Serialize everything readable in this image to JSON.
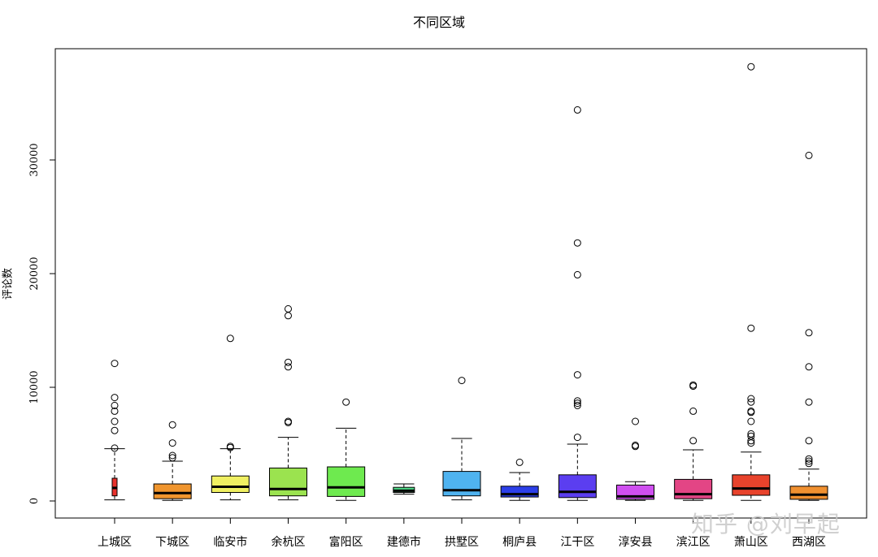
{
  "chart_data": {
    "type": "box",
    "title": "不同区域",
    "xlabel": "",
    "ylabel": "评论数",
    "ylim": [
      -1500,
      40000
    ],
    "yticks": [
      0,
      10000,
      20000,
      30000
    ],
    "grid": false,
    "legend": "none",
    "categories": [
      "上城区",
      "下城区",
      "临安市",
      "余杭区",
      "富阳区",
      "建德市",
      "拱墅区",
      "桐庐县",
      "江干区",
      "淳安县",
      "滨江区",
      "萧山区",
      "西湖区"
    ],
    "boxes": [
      {
        "name": "上城区",
        "color": "#e8312c",
        "whisker_low": 100,
        "q1": 450,
        "median": 1150,
        "q3": 2000,
        "whisker_high": 4600,
        "outliers": [
          4650,
          6200,
          7000,
          7900,
          8400,
          9100,
          12100
        ]
      },
      {
        "name": "下城区",
        "color": "#f0952e",
        "whisker_low": 50,
        "q1": 200,
        "median": 700,
        "q3": 1500,
        "whisker_high": 3500,
        "outliers": [
          3800,
          4000,
          5100,
          6700
        ]
      },
      {
        "name": "临安市",
        "color": "#f0f062",
        "whisker_low": 100,
        "q1": 750,
        "median": 1250,
        "q3": 2200,
        "whisker_high": 4600,
        "outliers": [
          4700,
          4800,
          14300
        ]
      },
      {
        "name": "余杭区",
        "color": "#9be34f",
        "whisker_low": 100,
        "q1": 450,
        "median": 1050,
        "q3": 2900,
        "whisker_high": 5600,
        "outliers": [
          6900,
          7000,
          11800,
          12200,
          16300,
          16900
        ]
      },
      {
        "name": "富阳区",
        "color": "#6eea4f",
        "whisker_low": 50,
        "q1": 400,
        "median": 1200,
        "q3": 3000,
        "whisker_high": 6400,
        "outliers": [
          8700
        ]
      },
      {
        "name": "建德市",
        "color": "#4fd987",
        "whisker_low": 600,
        "q1": 750,
        "median": 900,
        "q3": 1200,
        "whisker_high": 1500,
        "outliers": []
      },
      {
        "name": "拱墅区",
        "color": "#4fb3f0",
        "whisker_low": 100,
        "q1": 450,
        "median": 950,
        "q3": 2600,
        "whisker_high": 5500,
        "outliers": [
          10600
        ]
      },
      {
        "name": "桐庐县",
        "color": "#2c3fe8",
        "whisker_low": 50,
        "q1": 350,
        "median": 600,
        "q3": 1300,
        "whisker_high": 2500,
        "outliers": [
          3400
        ]
      },
      {
        "name": "江干区",
        "color": "#5b3ef0",
        "whisker_low": 50,
        "q1": 300,
        "median": 800,
        "q3": 2300,
        "whisker_high": 5000,
        "outliers": [
          5600,
          8400,
          8600,
          8800,
          11100,
          19900,
          22700,
          34400
        ]
      },
      {
        "name": "淳安县",
        "color": "#cf4ff0",
        "whisker_low": 50,
        "q1": 150,
        "median": 400,
        "q3": 1400,
        "whisker_high": 1700,
        "outliers": [
          4800,
          4900,
          7000
        ]
      },
      {
        "name": "滨江区",
        "color": "#e34585",
        "whisker_low": 50,
        "q1": 200,
        "median": 600,
        "q3": 1900,
        "whisker_high": 4500,
        "outliers": [
          5300,
          7900,
          10100,
          10200
        ]
      },
      {
        "name": "萧山区",
        "color": "#e8432c",
        "whisker_low": 50,
        "q1": 500,
        "median": 1100,
        "q3": 2300,
        "whisker_high": 4300,
        "outliers": [
          5100,
          5300,
          5700,
          5900,
          7000,
          7800,
          7900,
          8700,
          9000,
          15200,
          38200
        ]
      },
      {
        "name": "西湖区",
        "color": "#f09030",
        "whisker_low": 50,
        "q1": 150,
        "median": 550,
        "q3": 1300,
        "whisker_high": 2800,
        "outliers": [
          3300,
          3500,
          3700,
          5300,
          8700,
          11800,
          14800,
          30400
        ]
      }
    ]
  },
  "watermark": "知乎 @刘早起"
}
